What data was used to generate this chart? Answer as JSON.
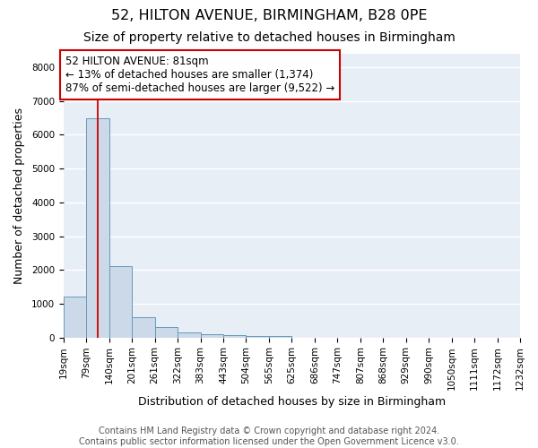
{
  "title": "52, HILTON AVENUE, BIRMINGHAM, B28 0PE",
  "subtitle": "Size of property relative to detached houses in Birmingham",
  "xlabel": "Distribution of detached houses by size in Birmingham",
  "ylabel": "Number of detached properties",
  "footer_line1": "Contains HM Land Registry data © Crown copyright and database right 2024.",
  "footer_line2": "Contains public sector information licensed under the Open Government Licence v3.0.",
  "bin_labels": [
    "19sqm",
    "79sqm",
    "140sqm",
    "201sqm",
    "261sqm",
    "322sqm",
    "383sqm",
    "443sqm",
    "504sqm",
    "565sqm",
    "625sqm",
    "686sqm",
    "747sqm",
    "807sqm",
    "868sqm",
    "929sqm",
    "990sqm",
    "1050sqm",
    "1111sqm",
    "1172sqm",
    "1232sqm"
  ],
  "bar_values": [
    1200,
    6500,
    2100,
    600,
    300,
    150,
    100,
    65,
    50,
    50,
    0,
    0,
    0,
    0,
    0,
    0,
    0,
    0,
    0,
    0
  ],
  "bar_color": "#ccd9e8",
  "bar_edge_color": "#6699bb",
  "background_color": "#e8eef6",
  "grid_color": "#ffffff",
  "annotation_text": "52 HILTON AVENUE: 81sqm\n← 13% of detached houses are smaller (1,374)\n87% of semi-detached houses are larger (9,522) →",
  "annotation_box_color": "#ffffff",
  "annotation_box_edge_color": "#cc0000",
  "vline_color": "#cc0000",
  "ylim": [
    0,
    8400
  ],
  "yticks": [
    0,
    1000,
    2000,
    3000,
    4000,
    5000,
    6000,
    7000,
    8000
  ],
  "title_fontsize": 11.5,
  "subtitle_fontsize": 10,
  "annotation_fontsize": 8.5,
  "axis_label_fontsize": 9,
  "tick_fontsize": 7.5,
  "footer_fontsize": 7
}
